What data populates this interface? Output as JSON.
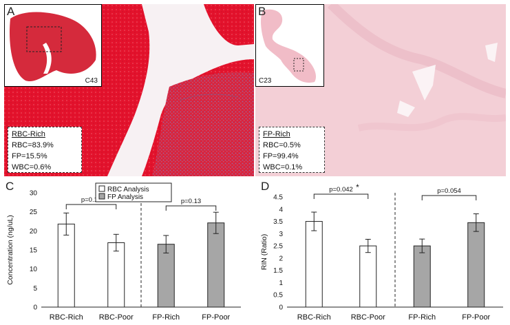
{
  "panel_a": {
    "letter": "A",
    "inset_label": "C43",
    "title": "RBC-Rich",
    "lines": [
      "RBC=83.9%",
      "FP=15.5%",
      "WBC=0.6%"
    ]
  },
  "panel_b": {
    "letter": "B",
    "inset_label": "C23",
    "title": "FP-Rich",
    "lines": [
      "RBC=0.5%",
      "FP=99.4%",
      "WBC=0.1%"
    ]
  },
  "colors": {
    "rbc_red": "#e0102a",
    "fp_pink": "#f5d0d8",
    "white_bar": "#ffffff",
    "gray_bar": "#a6a6a6"
  },
  "chart_data": [
    {
      "panel": "C",
      "type": "bar",
      "ylabel": "Concentration (ng/uL)",
      "xlabel": "",
      "ylim": [
        0,
        30
      ],
      "yticks": [
        "0",
        "5",
        "10",
        "15",
        "20",
        "25",
        "30"
      ],
      "categories": [
        "RBC-Rich",
        "RBC-Poor",
        "FP-Rich",
        "FP-Poor"
      ],
      "values": [
        21.8,
        16.9,
        16.5,
        22.1
      ],
      "errors": [
        2.9,
        2.2,
        2.3,
        2.8
      ],
      "fills": [
        "white",
        "white",
        "gray",
        "gray"
      ],
      "legend": [
        {
          "name": "RBC Analysis",
          "fill": "white"
        },
        {
          "name": "FP Analysis",
          "fill": "gray"
        }
      ],
      "legend_position": "top-center",
      "annotations": [
        {
          "pair": [
            0,
            1
          ],
          "text": "p=0.19"
        },
        {
          "pair": [
            2,
            3
          ],
          "text": "p=0.13"
        }
      ],
      "divider": "dashed line between RBC-Poor and FP-Rich"
    },
    {
      "panel": "D",
      "type": "bar",
      "ylabel": "RIN (Ratio)",
      "xlabel": "",
      "ylim": [
        0,
        4.5
      ],
      "yticks": [
        "0",
        "0.5",
        "1",
        "1.5",
        "2",
        "2.5",
        "3",
        "3.5",
        "4",
        "4.5"
      ],
      "categories": [
        "RBC-Rich",
        "RBC-Poor",
        "FP-Rich",
        "FP-Poor"
      ],
      "values": [
        3.5,
        2.5,
        2.5,
        3.45
      ],
      "errors": [
        0.38,
        0.27,
        0.28,
        0.36
      ],
      "fills": [
        "white",
        "white",
        "gray",
        "gray"
      ],
      "annotations": [
        {
          "pair": [
            0,
            1
          ],
          "text": "p=0.042",
          "mark": "*"
        },
        {
          "pair": [
            2,
            3
          ],
          "text": "p=0.054"
        }
      ],
      "divider": "dashed line between RBC-Poor and FP-Rich"
    }
  ]
}
